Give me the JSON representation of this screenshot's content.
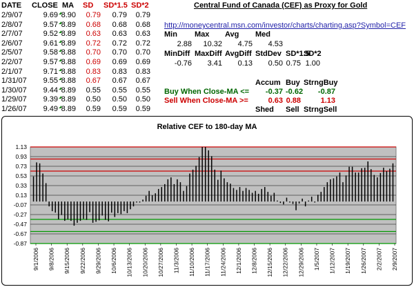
{
  "table": {
    "headers": [
      "DATE",
      "CLOSE",
      "MA",
      "SD",
      "SD*1.5",
      "SD*2"
    ],
    "rows": [
      [
        "2/9/07",
        "9.69",
        "8.90",
        "0.79",
        "0.79",
        "0.79"
      ],
      [
        "2/8/07",
        "9.57",
        "8.89",
        "0.68",
        "0.68",
        "0.68"
      ],
      [
        "2/7/07",
        "9.52",
        "8.89",
        "0.63",
        "0.63",
        "0.63"
      ],
      [
        "2/6/07",
        "9.61",
        "8.89",
        "0.72",
        "0.72",
        "0.72"
      ],
      [
        "2/5/07",
        "9.58",
        "8.88",
        "0.70",
        "0.70",
        "0.70"
      ],
      [
        "2/2/07",
        "9.57",
        "8.88",
        "0.69",
        "0.69",
        "0.69"
      ],
      [
        "2/1/07",
        "9.71",
        "8.88",
        "0.83",
        "0.83",
        "0.83"
      ],
      [
        "1/31/07",
        "9.55",
        "8.88",
        "0.67",
        "0.67",
        "0.67"
      ],
      [
        "1/30/07",
        "9.44",
        "8.89",
        "0.55",
        "0.55",
        "0.55"
      ],
      [
        "1/29/07",
        "9.39",
        "8.89",
        "0.50",
        "0.50",
        "0.50"
      ],
      [
        "1/26/07",
        "9.49",
        "8.89",
        "0.59",
        "0.59",
        "0.59"
      ]
    ]
  },
  "right": {
    "title": "Central Fund of Canada (CEF) as Proxy for Gold",
    "url": "http://moneycentral.msn.com/investor/charts/charting.asp?Symbol=CEF",
    "stats1_labels": [
      "Min",
      "Max",
      "Avg",
      "Med"
    ],
    "stats1_values": [
      "2.88",
      "10.32",
      "4.75",
      "4.53"
    ],
    "stats2_labels": [
      "MinDiff",
      "MaxDiff",
      "AvgDiff",
      "StdDev",
      "SD*1.5",
      "SD*2"
    ],
    "stats2_values": [
      "-0.76",
      "3.41",
      "0.13",
      "0.50",
      "0.75",
      "1.00"
    ],
    "signal_headers": [
      "Accum",
      "Buy",
      "StrngBuy"
    ],
    "buy_label": "Buy When Close-MA <=",
    "buy_values": [
      "-0.37",
      "-0.62",
      "-0.87"
    ],
    "sell_label": "Sell When Close-MA >=",
    "sell_values": [
      "0.63",
      "0.88",
      "1.13"
    ],
    "sell_headers": [
      "Shed",
      "Sell",
      "StrngSell"
    ]
  },
  "colors": {
    "red": "#cc0000",
    "green": "#006600",
    "plot_bg": "#c0c0c0",
    "grid_red": "#cc0000",
    "grid_green": "#009900",
    "bar": "#000000"
  },
  "chart_data": {
    "type": "bar",
    "title": "Relative CEF to 180-day MA",
    "ylim": [
      -0.87,
      1.13
    ],
    "yticks": [
      "1.13",
      "0.93",
      "0.73",
      "0.53",
      "0.33",
      "0.13",
      "-0.07",
      "-0.27",
      "-0.47",
      "-0.67",
      "-0.87"
    ],
    "red_lines": [
      1.13,
      0.88,
      0.63
    ],
    "green_lines": [
      -0.37,
      -0.62,
      -0.87
    ],
    "xticks": [
      "9/1/2006",
      "9/8/2006",
      "9/15/2006",
      "9/22/2006",
      "9/29/2006",
      "10/6/2006",
      "10/13/2006",
      "10/20/2006",
      "10/27/2006",
      "11/3/2006",
      "11/10/2006",
      "11/17/2006",
      "11/24/2006",
      "12/1/2006",
      "12/8/2006",
      "12/15/2006",
      "12/22/2006",
      "12/29/2006",
      "1/5/2007",
      "1/12/2007",
      "1/19/2007",
      "1/26/2007",
      "2/2/2007",
      "2/9/2007"
    ],
    "values": [
      0.52,
      0.81,
      0.79,
      0.58,
      0.38,
      -0.1,
      -0.2,
      -0.23,
      -0.37,
      -0.28,
      -0.4,
      -0.37,
      -0.4,
      -0.5,
      -0.44,
      -0.4,
      -0.36,
      -0.38,
      -0.22,
      -0.44,
      -0.42,
      -0.39,
      -0.29,
      -0.38,
      -0.41,
      -0.23,
      -0.32,
      -0.24,
      -0.26,
      -0.2,
      -0.24,
      -0.16,
      -0.1,
      -0.02,
      -0.02,
      0.04,
      0.12,
      0.22,
      0.13,
      0.17,
      0.26,
      0.3,
      0.36,
      0.46,
      0.5,
      0.36,
      0.46,
      0.4,
      0.22,
      0.32,
      0.58,
      0.66,
      0.74,
      0.92,
      1.13,
      1.13,
      1.06,
      0.94,
      0.66,
      0.45,
      0.64,
      0.48,
      0.4,
      0.37,
      0.28,
      0.24,
      0.3,
      0.22,
      0.28,
      0.24,
      0.18,
      0.22,
      0.16,
      0.26,
      0.3,
      0.2,
      0.12,
      0.18,
      0.02,
      -0.03,
      -0.06,
      0.08,
      -0.02,
      -0.05,
      -0.18,
      -0.04,
      0.06,
      -0.1,
      0.02,
      0.1,
      -0.02,
      0.14,
      0.2,
      0.3,
      0.4,
      0.46,
      0.48,
      0.52,
      0.6,
      0.4,
      0.54,
      0.72,
      0.72,
      0.6,
      0.6,
      0.69,
      0.7,
      0.83,
      0.67,
      0.55,
      0.5,
      0.59,
      0.7,
      0.63,
      0.68,
      0.79
    ]
  }
}
